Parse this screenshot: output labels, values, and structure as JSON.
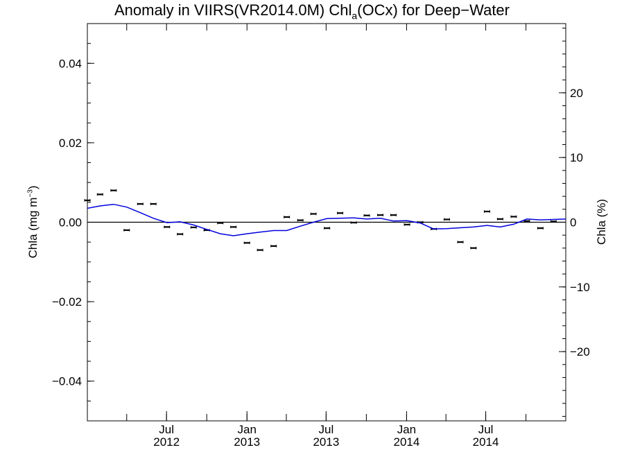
{
  "chart_data": {
    "type": "line",
    "title": {
      "prefix": "Anomaly in VIIRS(VR2014.0M) Chl",
      "subscript": "a",
      "suffix": "(OCx) for Deep−Water"
    },
    "ylabel_left": {
      "prefix": "Chla (mg m",
      "superscript": "−3",
      "suffix": ")"
    },
    "ylabel_right": "Chla (%)",
    "ylim_left": [
      -0.05,
      0.05
    ],
    "ylim_right": [
      -30.7,
      30.7
    ],
    "xlim": [
      "2012-01-02",
      "2014-12-31"
    ],
    "y_ticks_left": [
      {
        "value": 0.04,
        "label": "0.04"
      },
      {
        "value": 0.02,
        "label": "0.02"
      },
      {
        "value": 0.0,
        "label": "0.00"
      },
      {
        "value": -0.02,
        "label": "−0.02"
      },
      {
        "value": -0.04,
        "label": "−0.04"
      }
    ],
    "y_ticks_right": [
      {
        "value": 20,
        "label": "20"
      },
      {
        "value": 10,
        "label": "10"
      },
      {
        "value": 0,
        "label": "0"
      },
      {
        "value": -10,
        "label": "−10"
      },
      {
        "value": -20,
        "label": "−20"
      }
    ],
    "x_ticks": [
      {
        "date": "2012-07-01",
        "month": "Jul",
        "year": "2012"
      },
      {
        "date": "2013-01-01",
        "month": "Jan",
        "year": "2013"
      },
      {
        "date": "2013-07-01",
        "month": "Jul",
        "year": "2013"
      },
      {
        "date": "2014-01-01",
        "month": "Jan",
        "year": "2014"
      },
      {
        "date": "2014-07-01",
        "month": "Jul",
        "year": "2014"
      }
    ],
    "zero_line": true,
    "series": [
      {
        "kind": "points_with_errorbars",
        "color": "#000000",
        "points": [
          {
            "x": "2012-01-02",
            "y": 0.0055
          },
          {
            "x": "2012-01-31",
            "y": 0.007
          },
          {
            "x": "2012-03-02",
            "y": 0.008
          },
          {
            "x": "2012-04-01",
            "y": -0.002
          },
          {
            "x": "2012-05-02",
            "y": 0.0046
          },
          {
            "x": "2012-06-01",
            "y": 0.0046
          },
          {
            "x": "2012-07-02",
            "y": -0.0012
          },
          {
            "x": "2012-08-01",
            "y": -0.003
          },
          {
            "x": "2012-09-01",
            "y": -0.0013
          },
          {
            "x": "2012-10-01",
            "y": -0.002
          },
          {
            "x": "2012-11-01",
            "y": -0.0002
          },
          {
            "x": "2012-12-01",
            "y": -0.0012
          },
          {
            "x": "2013-01-01",
            "y": -0.0052
          },
          {
            "x": "2013-01-31",
            "y": -0.007
          },
          {
            "x": "2013-03-03",
            "y": -0.006
          },
          {
            "x": "2013-04-02",
            "y": 0.0013
          },
          {
            "x": "2013-05-03",
            "y": 0.0005
          },
          {
            "x": "2013-06-02",
            "y": 0.0021
          },
          {
            "x": "2013-07-03",
            "y": -0.0015
          },
          {
            "x": "2013-08-02",
            "y": 0.0023
          },
          {
            "x": "2013-09-02",
            "y": -0.0001
          },
          {
            "x": "2013-10-02",
            "y": 0.0017
          },
          {
            "x": "2013-11-02",
            "y": 0.0018
          },
          {
            "x": "2013-12-02",
            "y": 0.0018
          },
          {
            "x": "2014-01-02",
            "y": -0.0006
          },
          {
            "x": "2014-02-01",
            "y": 0.0
          },
          {
            "x": "2014-03-04",
            "y": -0.0017
          },
          {
            "x": "2014-04-03",
            "y": 0.0007
          },
          {
            "x": "2014-05-04",
            "y": -0.005
          },
          {
            "x": "2014-06-03",
            "y": -0.0065
          },
          {
            "x": "2014-07-04",
            "y": 0.0027
          },
          {
            "x": "2014-08-03",
            "y": 0.0008
          },
          {
            "x": "2014-09-03",
            "y": 0.0014
          },
          {
            "x": "2014-10-03",
            "y": 0.0003
          },
          {
            "x": "2014-11-03",
            "y": -0.0015
          },
          {
            "x": "2014-12-03",
            "y": 0.0002
          }
        ]
      },
      {
        "kind": "line",
        "color": "#0000dd",
        "points": [
          {
            "x": "2012-01-02",
            "y": 0.0035
          },
          {
            "x": "2012-01-31",
            "y": 0.0041
          },
          {
            "x": "2012-03-02",
            "y": 0.0045
          },
          {
            "x": "2012-04-01",
            "y": 0.0038
          },
          {
            "x": "2012-05-02",
            "y": 0.0024
          },
          {
            "x": "2012-06-01",
            "y": 0.001
          },
          {
            "x": "2012-07-02",
            "y": -0.0001
          },
          {
            "x": "2012-08-01",
            "y": 0.0001
          },
          {
            "x": "2012-09-01",
            "y": -0.0007
          },
          {
            "x": "2012-10-01",
            "y": -0.0018
          },
          {
            "x": "2012-11-01",
            "y": -0.0029
          },
          {
            "x": "2012-12-01",
            "y": -0.0034
          },
          {
            "x": "2013-01-01",
            "y": -0.0029
          },
          {
            "x": "2013-01-31",
            "y": -0.0025
          },
          {
            "x": "2013-03-03",
            "y": -0.0021
          },
          {
            "x": "2013-04-02",
            "y": -0.0021
          },
          {
            "x": "2013-05-03",
            "y": -0.001
          },
          {
            "x": "2013-06-02",
            "y": 0.0
          },
          {
            "x": "2013-07-03",
            "y": 0.0009
          },
          {
            "x": "2013-08-02",
            "y": 0.001
          },
          {
            "x": "2013-09-02",
            "y": 0.0011
          },
          {
            "x": "2013-10-02",
            "y": 0.0008
          },
          {
            "x": "2013-11-02",
            "y": 0.001
          },
          {
            "x": "2013-12-02",
            "y": 0.0003
          },
          {
            "x": "2014-01-02",
            "y": 0.0004
          },
          {
            "x": "2014-02-01",
            "y": -0.0002
          },
          {
            "x": "2014-03-04",
            "y": -0.0017
          },
          {
            "x": "2014-04-03",
            "y": -0.0016
          },
          {
            "x": "2014-05-04",
            "y": -0.0014
          },
          {
            "x": "2014-06-03",
            "y": -0.0012
          },
          {
            "x": "2014-07-04",
            "y": -0.0008
          },
          {
            "x": "2014-08-03",
            "y": -0.0012
          },
          {
            "x": "2014-09-03",
            "y": -0.0005
          },
          {
            "x": "2014-10-03",
            "y": 0.0008
          },
          {
            "x": "2014-11-03",
            "y": 0.0006
          },
          {
            "x": "2014-12-31",
            "y": 0.0008
          }
        ]
      }
    ]
  }
}
